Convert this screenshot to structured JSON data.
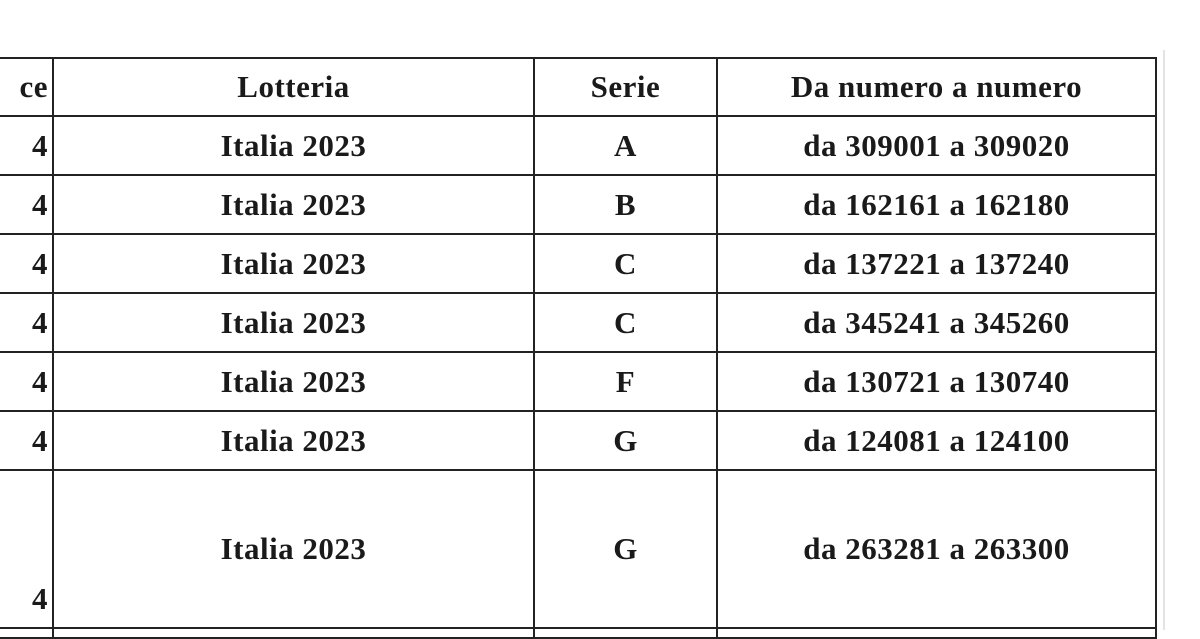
{
  "table": {
    "headers": [
      "ce",
      "Lotteria",
      "Serie",
      "Da numero a numero"
    ],
    "rows": [
      {
        "first": "4",
        "lotteria": "Italia 2023",
        "serie": "A",
        "range": "da 309001 a 309020"
      },
      {
        "first": "4",
        "lotteria": "Italia 2023",
        "serie": "B",
        "range": "da 162161 a 162180"
      },
      {
        "first": "4",
        "lotteria": "Italia 2023",
        "serie": "C",
        "range": "da 137221 a 137240"
      },
      {
        "first": "4",
        "lotteria": "Italia 2023",
        "serie": "C",
        "range": "da 345241 a 345260"
      },
      {
        "first": "4",
        "lotteria": "Italia 2023",
        "serie": "F",
        "range": "da 130721 a 130740"
      },
      {
        "first": "4",
        "lotteria": "Italia 2023",
        "serie": "G",
        "range": "da 124081 a 124100"
      },
      {
        "first": "4",
        "lotteria": "Italia 2023",
        "serie": "G",
        "range": "da 263281 a 263300"
      }
    ]
  }
}
